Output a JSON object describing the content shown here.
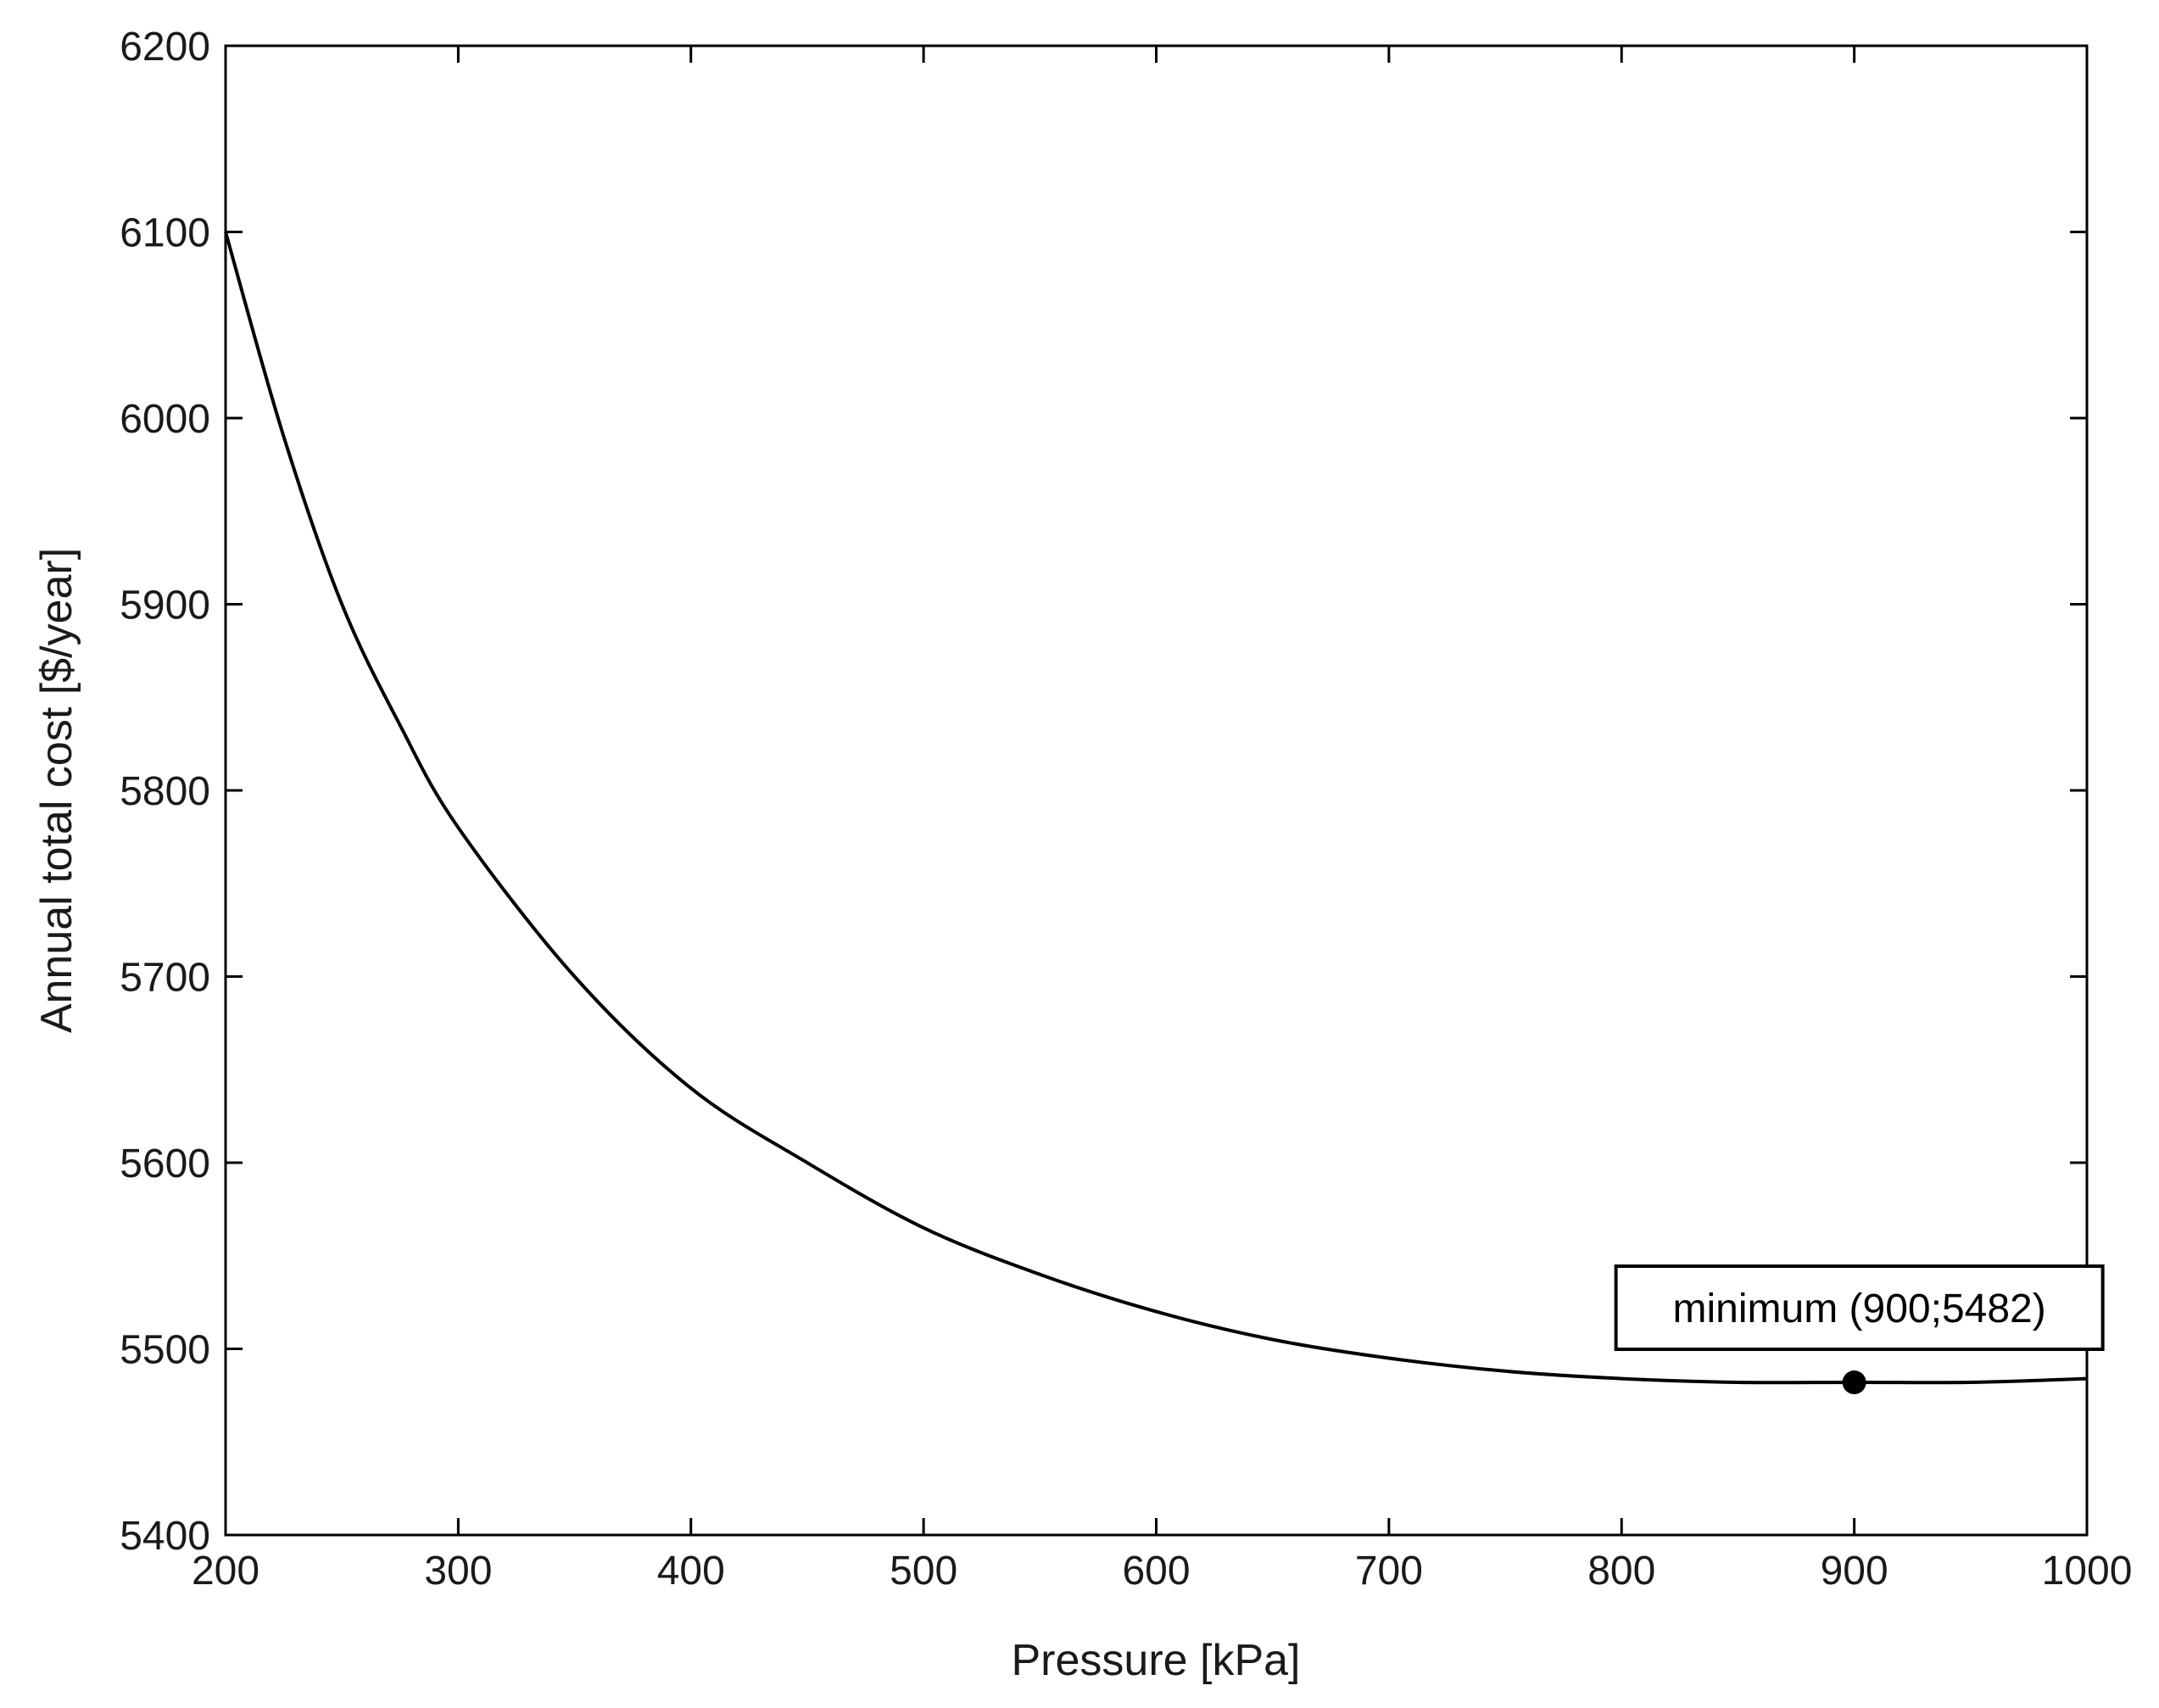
{
  "chart_data": {
    "type": "line",
    "title": "",
    "xlabel": "Pressure [kPa]",
    "ylabel": "Annual total cost [$/year]",
    "xlim": [
      200,
      1000
    ],
    "ylim": [
      5400,
      6200
    ],
    "xticks": [
      200,
      300,
      400,
      500,
      600,
      700,
      800,
      900,
      1000
    ],
    "yticks": [
      5400,
      5500,
      5600,
      5700,
      5800,
      5900,
      6000,
      6100,
      6200
    ],
    "xtick_labels": [
      "200",
      "300",
      "400",
      "500",
      "600",
      "700",
      "800",
      "900",
      "1000"
    ],
    "ytick_labels": [
      "5400",
      "5500",
      "5600",
      "5700",
      "5800",
      "5900",
      "6000",
      "6100",
      "6200"
    ],
    "grid": false,
    "series": [
      {
        "name": "Annual total cost",
        "color": "#000000",
        "x": [
          200,
          225,
          250,
          275,
          300,
          350,
          400,
          450,
          500,
          550,
          600,
          650,
          700,
          750,
          800,
          850,
          900,
          950,
          1000
        ],
        "y": [
          6100,
          5990,
          5900,
          5835,
          5780,
          5700,
          5640,
          5600,
          5565,
          5540,
          5520,
          5505,
          5495,
          5488,
          5484,
          5482,
          5482,
          5482,
          5484
        ]
      }
    ],
    "annotations": [
      {
        "text": "minimum (900;5482)",
        "x": 900,
        "y": 5482,
        "marker": "filled-circle"
      }
    ]
  }
}
